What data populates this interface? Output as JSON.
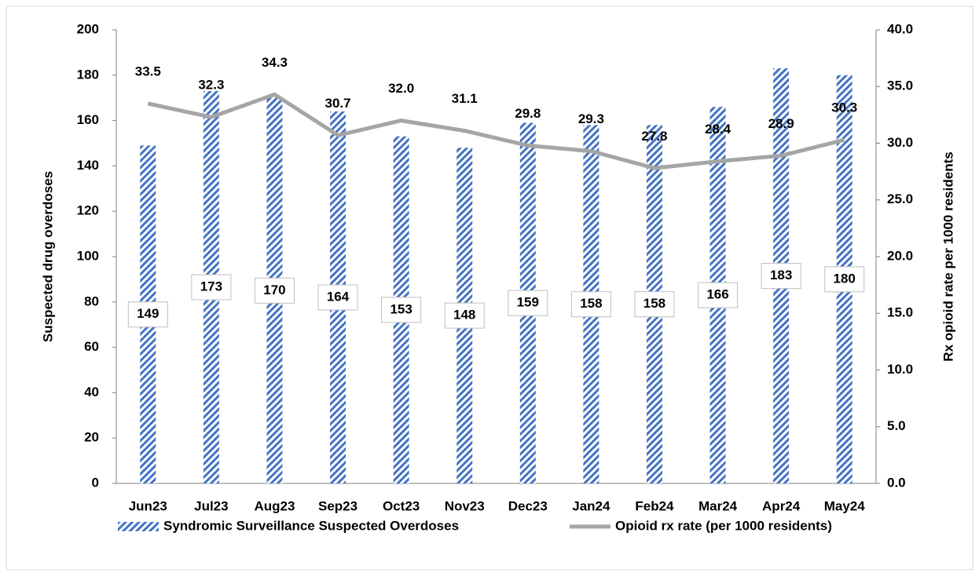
{
  "chart_data": {
    "type": "bar",
    "categories": [
      "Jun23",
      "Jul23",
      "Aug23",
      "Sep23",
      "Oct23",
      "Nov23",
      "Dec23",
      "Jan24",
      "Feb24",
      "Mar24",
      "Apr24",
      "May24"
    ],
    "y_label": "Suspected drug overdoses",
    "y2_label": "Rx opioid rate per 1000 residents",
    "ylim": [
      0,
      200
    ],
    "yticks": [
      0,
      20,
      40,
      60,
      80,
      100,
      120,
      140,
      160,
      180,
      200
    ],
    "y2lim": [
      0,
      40
    ],
    "y2ticks": [
      {
        "value": 0,
        "label": "0.0"
      },
      {
        "value": 5,
        "label": "5.0"
      },
      {
        "value": 10,
        "label": "10.0"
      },
      {
        "value": 15,
        "label": "15.0"
      },
      {
        "value": 20,
        "label": "20.0"
      },
      {
        "value": 25,
        "label": "25.0"
      },
      {
        "value": 30,
        "label": "30.0"
      },
      {
        "value": 35,
        "label": "35.0"
      },
      {
        "value": 40,
        "label": "40.0"
      }
    ],
    "series": [
      {
        "name": "Syndromic Surveillance Suspected Overdoses",
        "type": "bar",
        "color": "#4472c4",
        "values": [
          149,
          173,
          170,
          164,
          153,
          148,
          159,
          158,
          158,
          166,
          183,
          180
        ]
      },
      {
        "name": "Opioid rx rate (per 1000 residents)",
        "type": "line",
        "axis": "y2",
        "color": "#a5a5a5",
        "values": [
          33.5,
          32.3,
          34.3,
          30.7,
          32.0,
          31.1,
          29.8,
          29.3,
          27.8,
          28.4,
          28.9,
          30.3
        ],
        "value_labels": [
          "33.5",
          "32.3",
          "34.3",
          "30.7",
          "32.0",
          "31.1",
          "29.8",
          "29.3",
          "27.8",
          "28.4",
          "28.9",
          "30.3"
        ]
      }
    ],
    "legend": "bottom"
  }
}
